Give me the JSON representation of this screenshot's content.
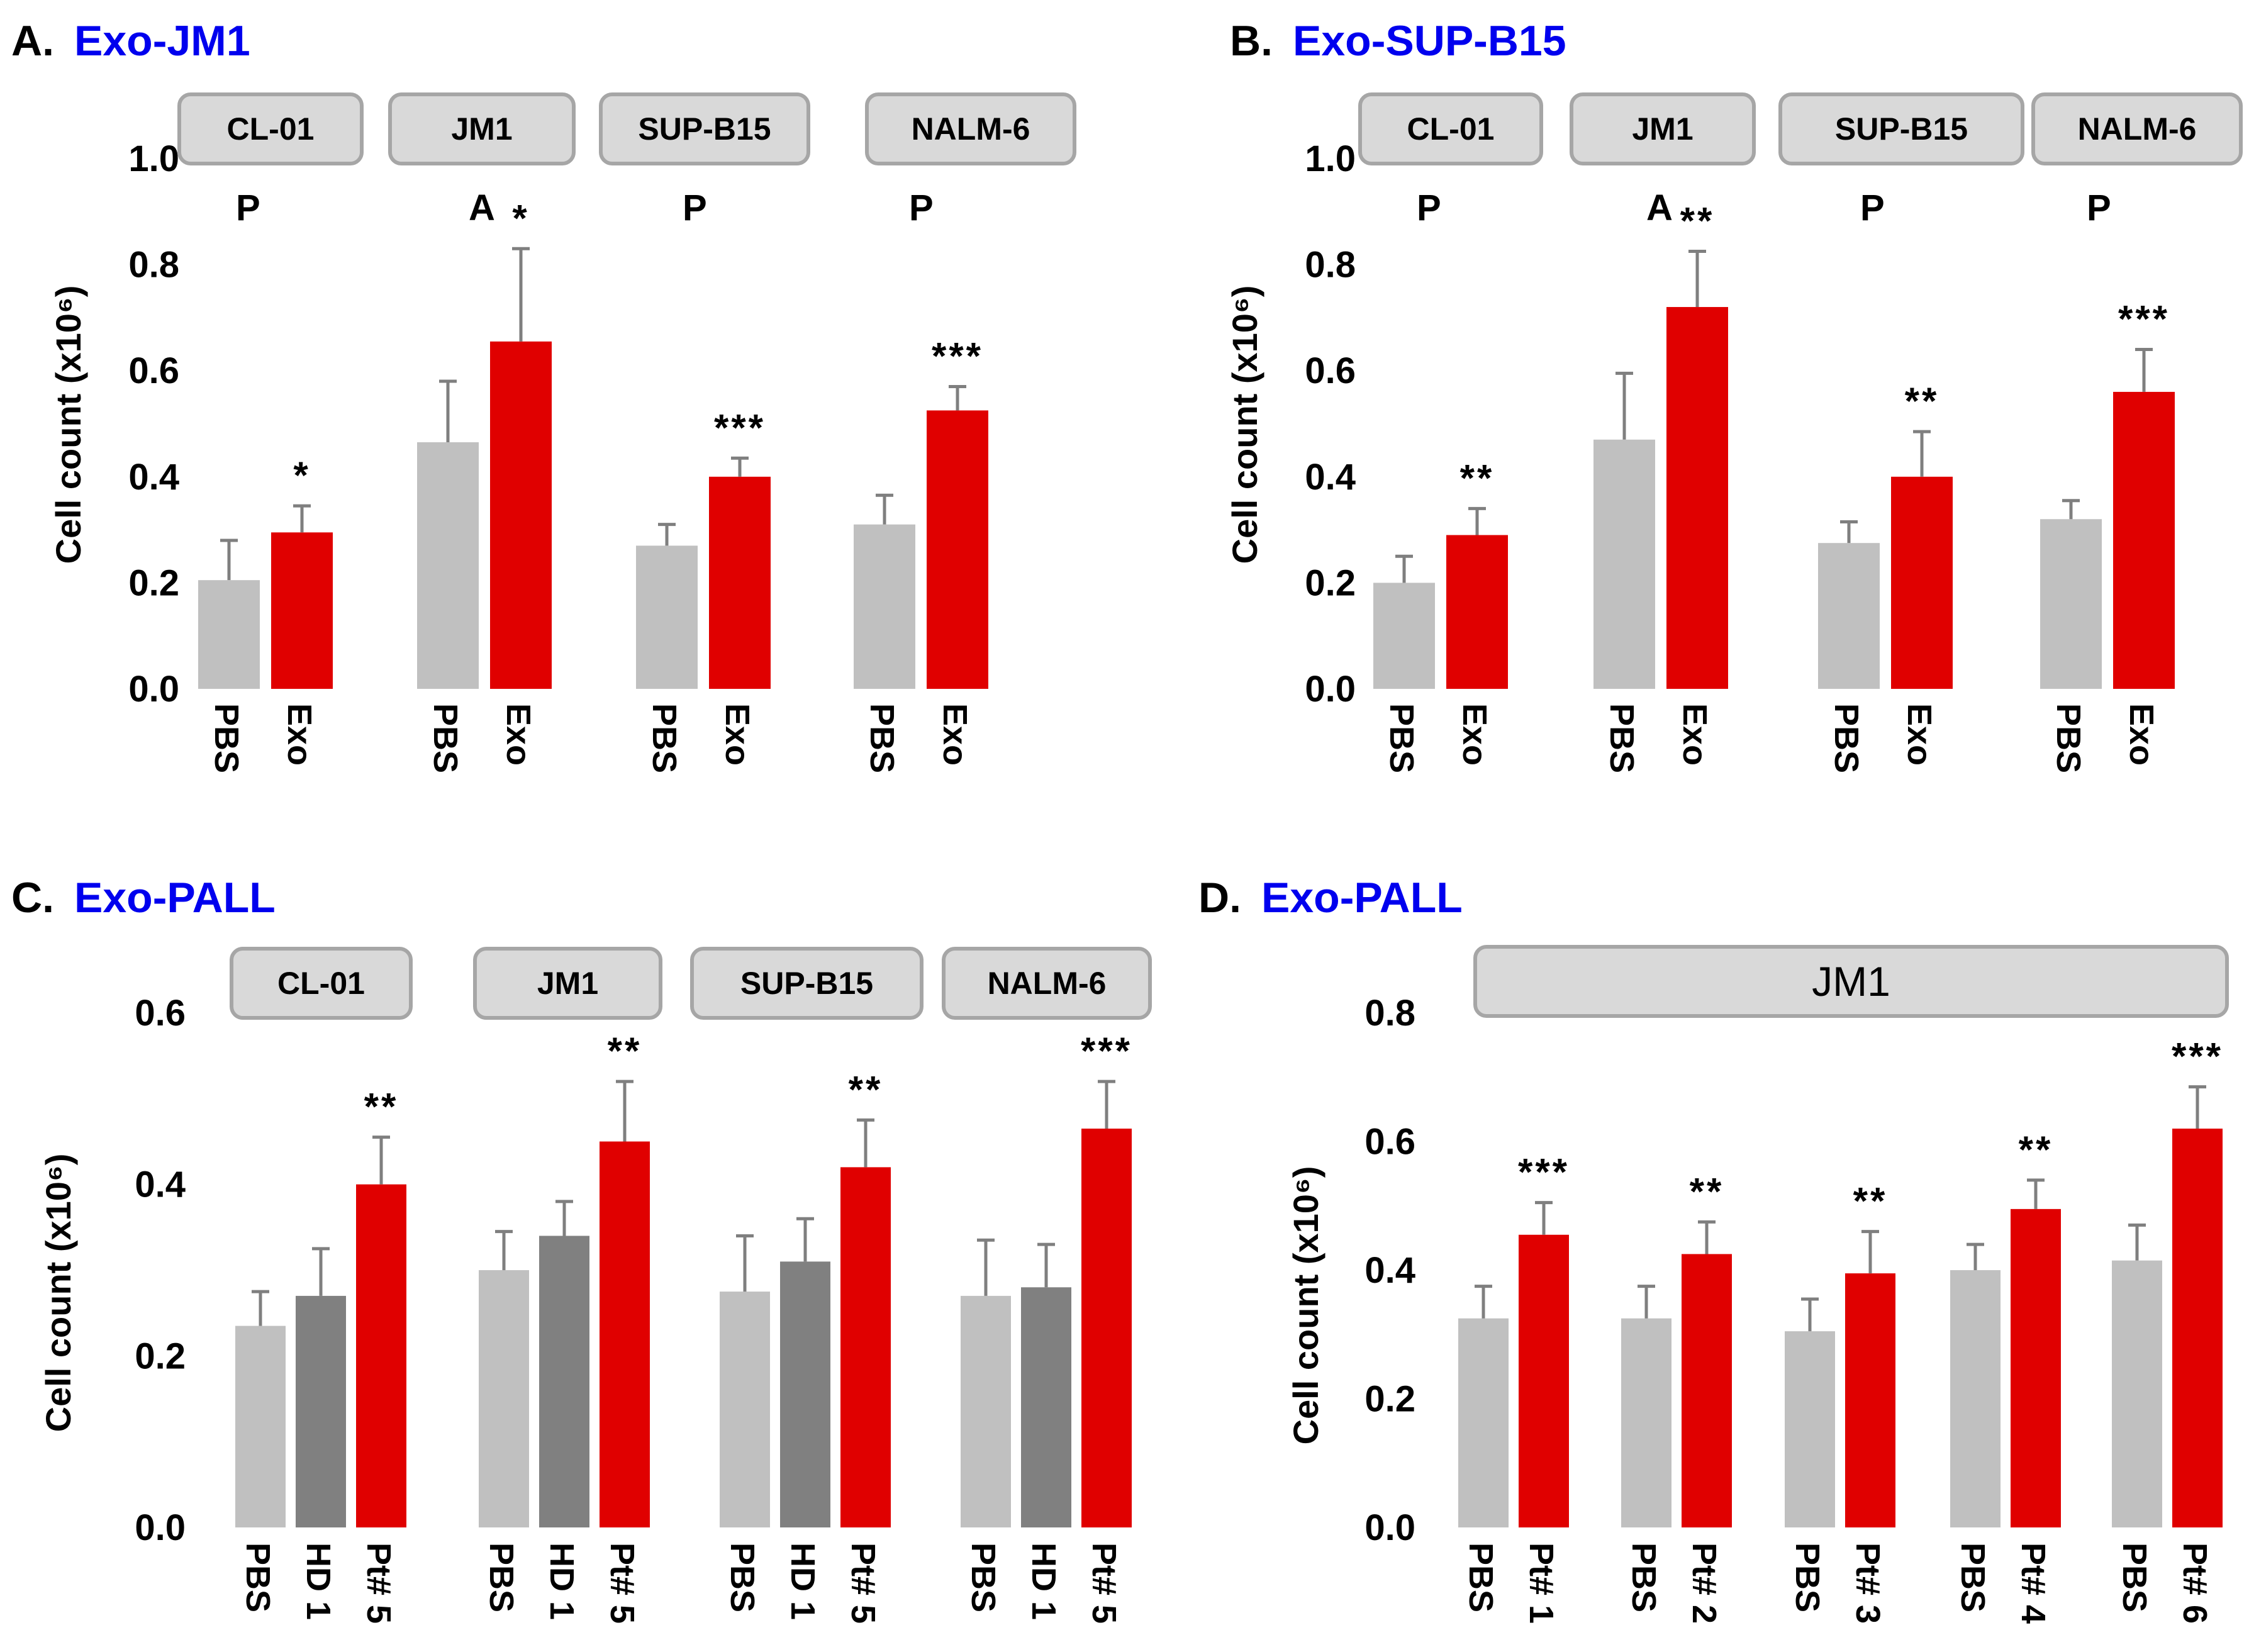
{
  "colors": {
    "title": "#0000ee",
    "pbs": "#c0c0c0",
    "hd": "#808080",
    "exo": "#e00000",
    "cellbox_fill": "#d9d9d9",
    "cellbox_stroke": "#a6a6a6",
    "errorbar": "#7f7f7f"
  },
  "chart_data": [
    {
      "type": "bar",
      "panel_label": "A.",
      "title": "Exo-JM1",
      "ylabel": "Cell count (x10⁶)",
      "ylim": [
        0,
        1.0
      ],
      "yticks": [
        "0.0",
        "0.2",
        "0.4",
        "0.6",
        "0.8",
        "1.0"
      ],
      "groups": [
        {
          "cell": "CL-01",
          "status": "P",
          "labels": [
            "PBS",
            "Exo"
          ],
          "values": [
            0.205,
            0.295
          ],
          "errors": [
            0.075,
            0.05
          ],
          "sig": "*"
        },
        {
          "cell": "JM1",
          "status": "A",
          "labels": [
            "PBS",
            "Exo"
          ],
          "values": [
            0.465,
            0.655
          ],
          "errors": [
            0.115,
            0.175
          ],
          "sig": "*"
        },
        {
          "cell": "SUP-B15",
          "status": "P",
          "labels": [
            "PBS",
            "Exo"
          ],
          "values": [
            0.27,
            0.4
          ],
          "errors": [
            0.04,
            0.035
          ],
          "sig": "***"
        },
        {
          "cell": "NALM-6",
          "status": "P",
          "labels": [
            "PBS",
            "Exo"
          ],
          "values": [
            0.31,
            0.525
          ],
          "errors": [
            0.055,
            0.045
          ],
          "sig": "***"
        }
      ]
    },
    {
      "type": "bar",
      "panel_label": "B.",
      "title": "Exo-SUP-B15",
      "ylabel": "Cell count (x10⁶)",
      "ylim": [
        0,
        1.0
      ],
      "yticks": [
        "0.0",
        "0.2",
        "0.4",
        "0.6",
        "0.8",
        "1.0"
      ],
      "groups": [
        {
          "cell": "CL-01",
          "status": "P",
          "labels": [
            "PBS",
            "Exo"
          ],
          "values": [
            0.2,
            0.29
          ],
          "errors": [
            0.05,
            0.05
          ],
          "sig": "**"
        },
        {
          "cell": "JM1",
          "status": "A",
          "labels": [
            "PBS",
            "Exo"
          ],
          "values": [
            0.47,
            0.72
          ],
          "errors": [
            0.125,
            0.105
          ],
          "sig": "**"
        },
        {
          "cell": "SUP-B15",
          "status": "P",
          "labels": [
            "PBS",
            "Exo"
          ],
          "values": [
            0.275,
            0.4
          ],
          "errors": [
            0.04,
            0.085
          ],
          "sig": "**"
        },
        {
          "cell": "NALM-6",
          "status": "P",
          "labels": [
            "PBS",
            "Exo"
          ],
          "values": [
            0.32,
            0.56
          ],
          "errors": [
            0.035,
            0.08
          ],
          "sig": "***"
        }
      ]
    },
    {
      "type": "bar",
      "panel_label": "C.",
      "title": "Exo-PALL",
      "ylabel": "Cell count (x10⁶)",
      "ylim": [
        0,
        0.6
      ],
      "yticks": [
        "0.0",
        "0.2",
        "0.4",
        "0.6"
      ],
      "groups": [
        {
          "cell": "CL-01",
          "labels": [
            "PBS",
            "HD 1",
            "Pt# 5"
          ],
          "values": [
            0.235,
            0.27,
            0.4
          ],
          "errors": [
            0.04,
            0.055,
            0.055
          ],
          "sig": "**"
        },
        {
          "cell": "JM1",
          "labels": [
            "PBS",
            "HD 1",
            "Pt# 5"
          ],
          "values": [
            0.3,
            0.34,
            0.45
          ],
          "errors": [
            0.045,
            0.04,
            0.07
          ],
          "sig": "**"
        },
        {
          "cell": "SUP-B15",
          "labels": [
            "PBS",
            "HD 1",
            "Pt# 5"
          ],
          "values": [
            0.275,
            0.31,
            0.42
          ],
          "errors": [
            0.065,
            0.05,
            0.055
          ],
          "sig": "**"
        },
        {
          "cell": "NALM-6",
          "labels": [
            "PBS",
            "HD 1",
            "Pt# 5"
          ],
          "values": [
            0.27,
            0.28,
            0.465
          ],
          "errors": [
            0.065,
            0.05,
            0.055
          ],
          "sig": "***"
        }
      ]
    },
    {
      "type": "bar",
      "panel_label": "D.",
      "title": "Exo-PALL",
      "cell": "JM1",
      "ylabel": "Cell count (x10⁶)",
      "ylim": [
        0,
        0.8
      ],
      "yticks": [
        "0.0",
        "0.2",
        "0.4",
        "0.6",
        "0.8"
      ],
      "groups": [
        {
          "labels": [
            "PBS",
            "Pt# 1"
          ],
          "values": [
            0.325,
            0.455
          ],
          "errors": [
            0.05,
            0.05
          ],
          "sig": "***"
        },
        {
          "labels": [
            "PBS",
            "Pt# 2"
          ],
          "values": [
            0.325,
            0.425
          ],
          "errors": [
            0.05,
            0.05
          ],
          "sig": "**"
        },
        {
          "labels": [
            "PBS",
            "Pt# 3"
          ],
          "values": [
            0.305,
            0.395
          ],
          "errors": [
            0.05,
            0.065
          ],
          "sig": "**"
        },
        {
          "labels": [
            "PBS",
            "Pt# 4"
          ],
          "values": [
            0.4,
            0.495
          ],
          "errors": [
            0.04,
            0.045
          ],
          "sig": "**"
        },
        {
          "labels": [
            "PBS",
            "Pt# 6"
          ],
          "values": [
            0.415,
            0.62
          ],
          "errors": [
            0.055,
            0.065
          ],
          "sig": "***"
        }
      ]
    }
  ]
}
